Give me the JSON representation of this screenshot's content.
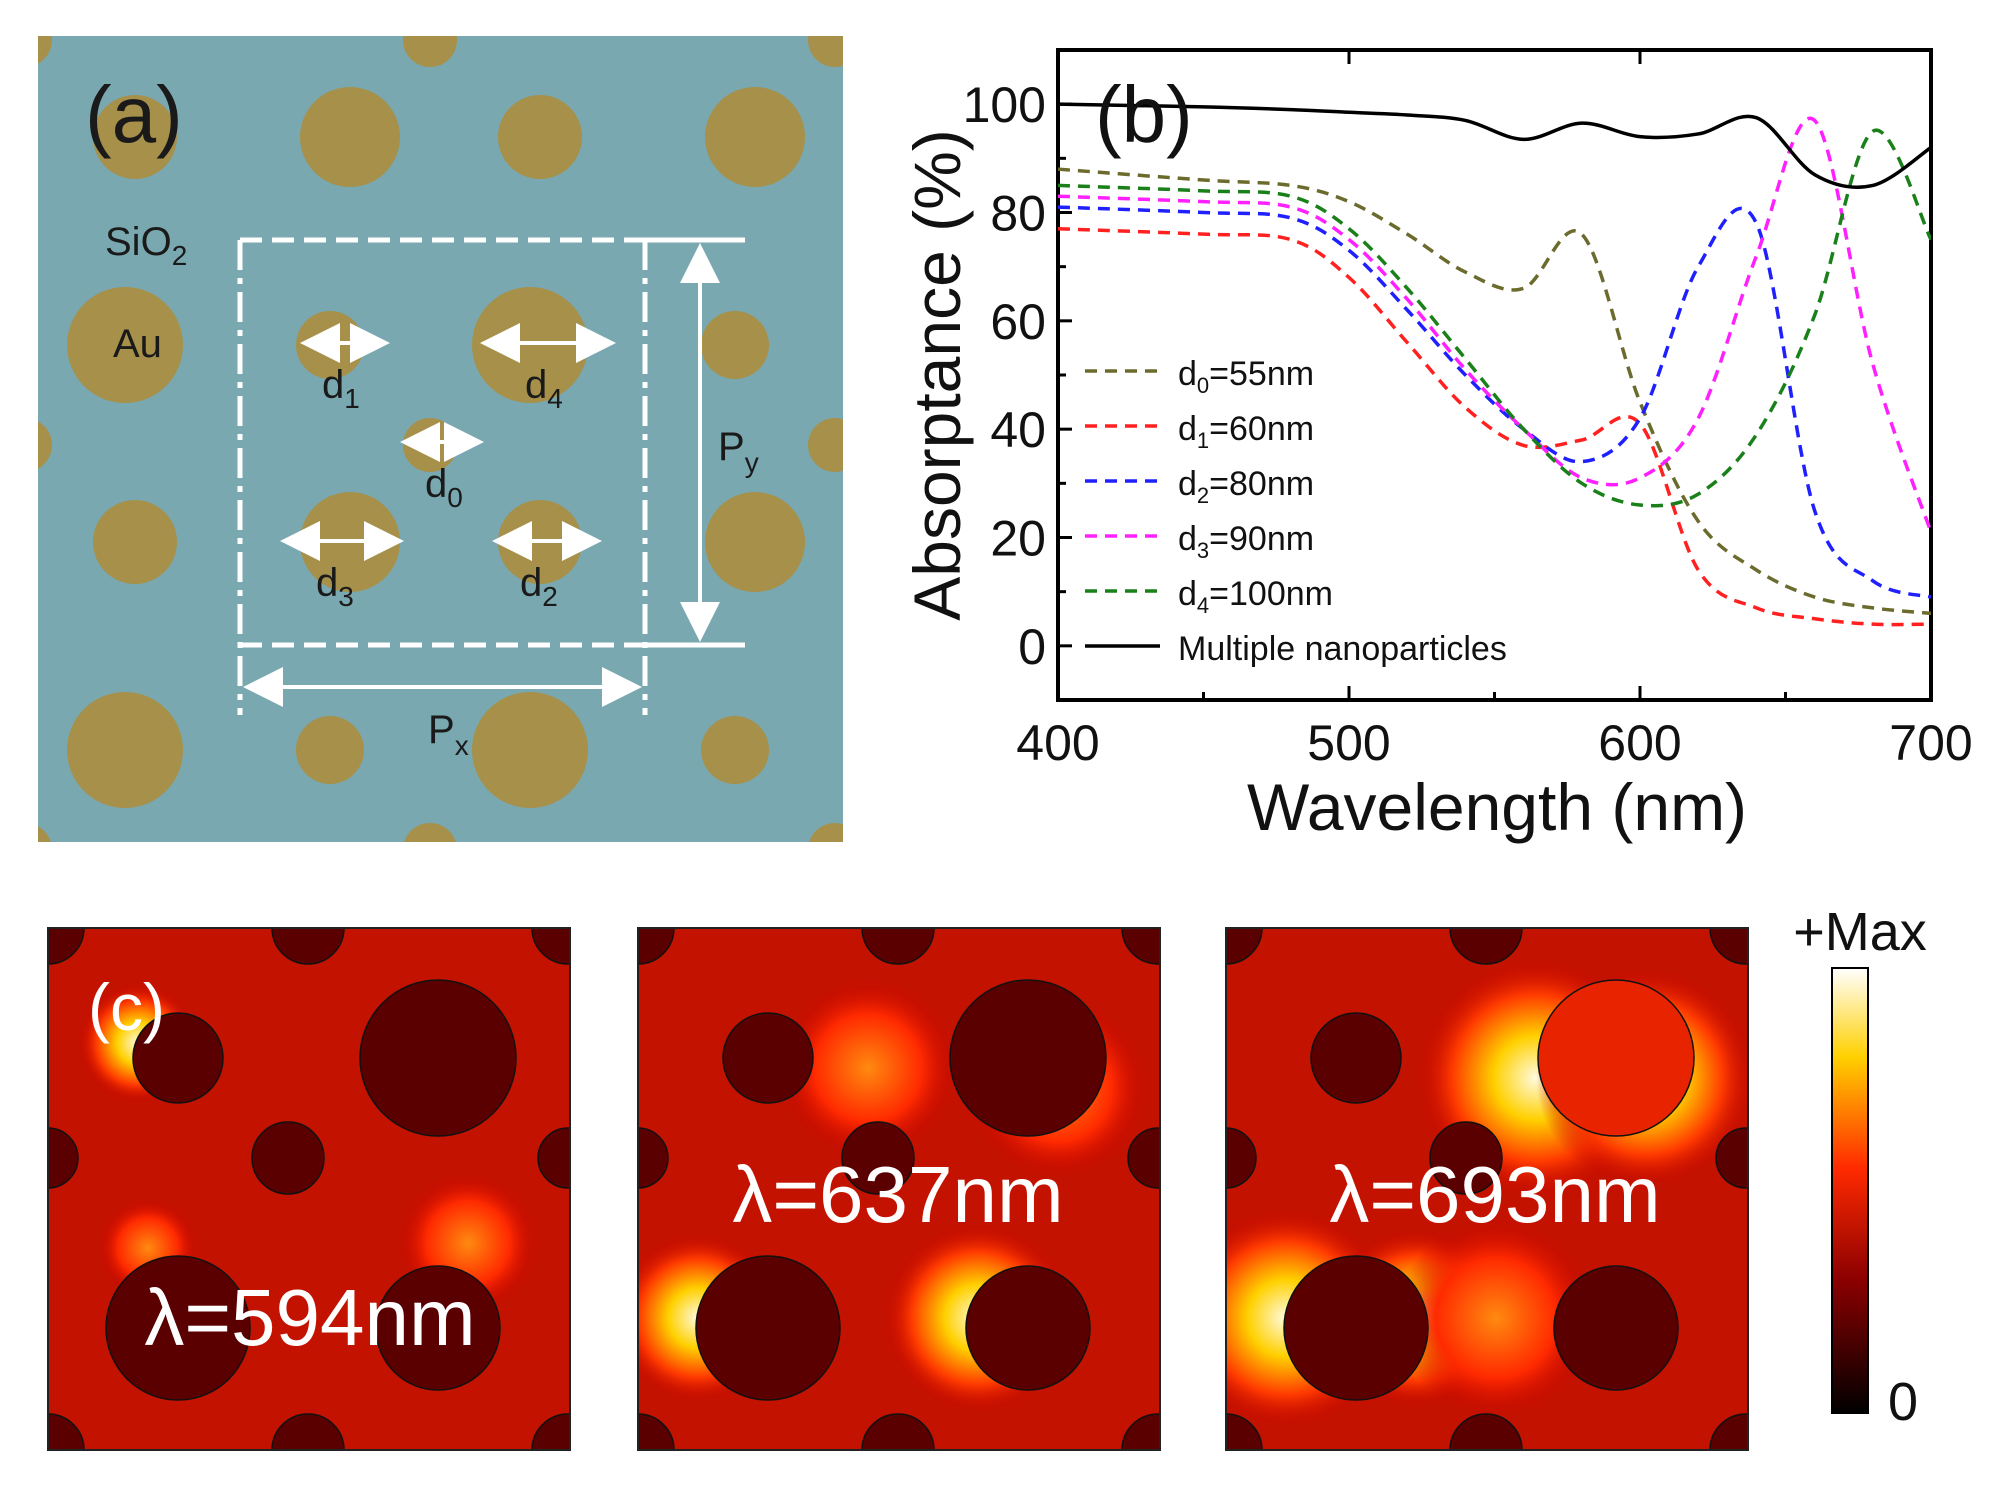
{
  "panel_a": {
    "label": "(a)",
    "sio2": "SiO",
    "sio2_sub": "2",
    "au": "Au",
    "d0": "d",
    "d0_sub": "0",
    "d1": "d",
    "d1_sub": "1",
    "d2": "d",
    "d2_sub": "2",
    "d3": "d",
    "d3_sub": "3",
    "d4": "d",
    "d4_sub": "4",
    "px": "P",
    "px_sub": "x",
    "py": "P",
    "py_sub": "y",
    "colors": {
      "background": "#79a8b0",
      "particle": "#a6904a",
      "line": "#ffffff"
    }
  },
  "panel_c": {
    "label": "(c)",
    "maps": [
      {
        "label": "λ=594nm"
      },
      {
        "label": "λ=637nm"
      },
      {
        "label": "λ=693nm"
      }
    ],
    "colorbar": {
      "max_label": "+Max",
      "min_label": "0"
    }
  },
  "chart_data": {
    "type": "line",
    "panel_label": "(b)",
    "xlabel": "Wavelength (nm)",
    "ylabel": "Absorptance (%)",
    "xlim": [
      400,
      700
    ],
    "ylim": [
      -10,
      110
    ],
    "xticks": [
      400,
      500,
      600,
      700
    ],
    "yticks": [
      0,
      20,
      40,
      60,
      80,
      100
    ],
    "legend_position": "bottom-left",
    "x": [
      400,
      450,
      480,
      500,
      520,
      540,
      560,
      580,
      600,
      620,
      640,
      660,
      680,
      700
    ],
    "series": [
      {
        "name": "d",
        "sub": "0",
        "suffix": "=55nm",
        "color": "#6b6b2e",
        "dash": true,
        "values": [
          88,
          86,
          85,
          82,
          76,
          69,
          66,
          76,
          45,
          23,
          14,
          9,
          7,
          6
        ]
      },
      {
        "name": "d",
        "sub": "1",
        "suffix": "=60nm",
        "color": "#ff2020",
        "dash": true,
        "values": [
          77,
          76,
          75,
          68,
          56,
          44,
          37,
          38,
          41,
          14,
          7,
          5,
          4,
          4
        ]
      },
      {
        "name": "d",
        "sub": "2",
        "suffix": "=80nm",
        "color": "#2020ff",
        "dash": true,
        "values": [
          81,
          80,
          79,
          73,
          62,
          50,
          40,
          34,
          42,
          70,
          78,
          25,
          12,
          9
        ]
      },
      {
        "name": "d",
        "sub": "3",
        "suffix": "=90nm",
        "color": "#ff20ff",
        "dash": true,
        "values": [
          83,
          82,
          81,
          75,
          64,
          51,
          40,
          31,
          31,
          42,
          72,
          97,
          52,
          21
        ]
      },
      {
        "name": "d",
        "sub": "4",
        "suffix": "=100nm",
        "color": "#1a801a",
        "dash": true,
        "values": [
          85,
          84,
          83,
          77,
          66,
          53,
          40,
          30,
          26,
          28,
          39,
          61,
          95,
          75
        ]
      },
      {
        "name": "Multiple nanoparticles",
        "sub": "",
        "suffix": "",
        "color": "#000000",
        "dash": false,
        "values": [
          100,
          99.5,
          99,
          98.5,
          98,
          97,
          93.5,
          96.5,
          94,
          94.5,
          97.5,
          87,
          85,
          92
        ]
      }
    ]
  }
}
